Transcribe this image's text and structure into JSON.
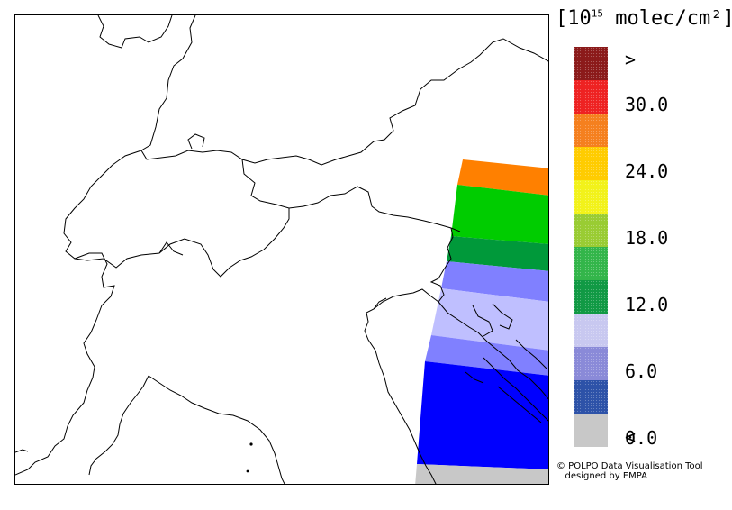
{
  "legend": {
    "title_prefix": "[10",
    "title_exponent": "15",
    "title_suffix": " molec/cm²]",
    "bins": [
      {
        "color": "#8b1a1a",
        "pattern": "dots"
      },
      {
        "color": "#ee2222",
        "pattern": "dots"
      },
      {
        "color": "#f5801e",
        "pattern": "dots"
      },
      {
        "color": "#ffcc00",
        "pattern": "dots"
      },
      {
        "color": "#f2f21a",
        "pattern": "dots"
      },
      {
        "color": "#99cc33",
        "pattern": "dots"
      },
      {
        "color": "#33b54a",
        "pattern": "dots"
      },
      {
        "color": "#119944",
        "pattern": "dots"
      },
      {
        "color": "#c8c8f0",
        "pattern": "dots"
      },
      {
        "color": "#8a8ad8",
        "pattern": "dots"
      },
      {
        "color": "#2d52a8",
        "pattern": "dots"
      },
      {
        "color": "#c8c8c8",
        "pattern": "none"
      }
    ],
    "tick_labels": [
      ">",
      "30.0",
      "24.0",
      "18.0",
      "12.0",
      "6.0",
      "0.0",
      "<"
    ]
  },
  "map": {
    "swath_bands": [
      {
        "color": "#ff8000"
      },
      {
        "color": "#00cc00"
      },
      {
        "color": "#00993a"
      },
      {
        "color": "#8080ff"
      },
      {
        "color": "#bfbfff"
      },
      {
        "color": "#8080ff"
      },
      {
        "color": "#0000ff"
      },
      {
        "color": "#c8c8c8"
      }
    ]
  },
  "credit": {
    "line1": "© POLPO Data Visualisation Tool",
    "line2": "   designed by EMPA"
  }
}
